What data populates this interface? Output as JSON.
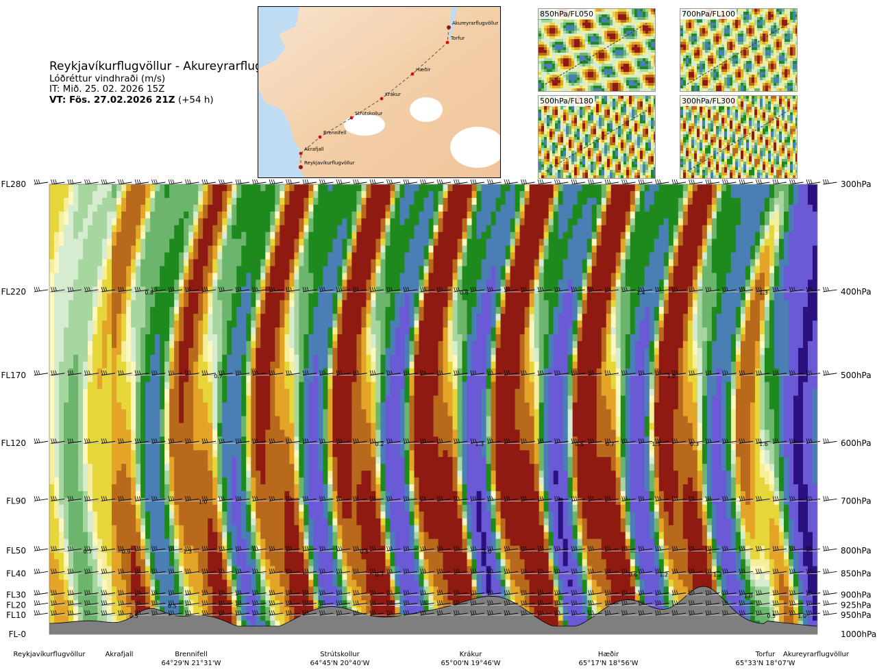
{
  "title": {
    "route": "Reykjavíkurflugvöllur - Akureyrarflugvöllur",
    "variable": "Lóðréttur vindhraði (m/s)",
    "issue_time": "IT: Mið. 25. 02. 2026 15Z",
    "valid_time_bold": "VT: Fös. 27.02.2026 21Z",
    "valid_time_lead": "(+54 h)"
  },
  "map": {
    "waypoints": [
      "Akureyrarflugvöllur",
      "Torfur",
      "Hæðir",
      "Krákur",
      "Strútskollur",
      "Brennifell",
      "Akrafjall",
      "Reykjavíkurflugvöllur"
    ]
  },
  "insets": [
    {
      "label": "850hPa/FL050"
    },
    {
      "label": "700hPa/FL100"
    },
    {
      "label": "500hPa/FL180"
    },
    {
      "label": "300hPa/FL300"
    }
  ],
  "chart_data": {
    "type": "heatmap",
    "title": "Lóðréttur vindhraði (m/s)",
    "left_axis": [
      "FL280",
      "FL220",
      "FL170",
      "FL120",
      "FL90",
      "FL50",
      "FL40",
      "FL30",
      "FL20",
      "FL10",
      "FL-0"
    ],
    "right_axis": [
      "300hPa",
      "400hPa",
      "500hPa",
      "600hPa",
      "700hPa",
      "800hPa",
      "850hPa",
      "900hPa",
      "925hPa",
      "950hPa",
      "1000hPa"
    ],
    "pressure_levels_hpa": [
      300,
      400,
      500,
      600,
      700,
      800,
      850,
      900,
      925,
      950,
      1000
    ],
    "colors": {
      "strong_down": "#2b1080",
      "down_3": "#6a5ad6",
      "down_2": "#4a7fb5",
      "down_1": "#1e8a1e",
      "down_05": "#6cb56c",
      "down_02": "#a8d6a0",
      "down_01": "#d6ecd0",
      "neutral": "#fff7c0",
      "up_01": "#f5ee9a",
      "up_02": "#e6d63a",
      "up_05": "#e3a427",
      "up_1": "#b8691b",
      "up_2": "#8e1a12",
      "terrain": "#7f7f7f"
    },
    "annotations": [
      {
        "x": 0.13,
        "p": 400,
        "label": "0.8"
      },
      {
        "x": 0.54,
        "p": 400,
        "label": "0.8"
      },
      {
        "x": 0.77,
        "p": 400,
        "label": "1.4"
      },
      {
        "x": 0.93,
        "p": 400,
        "label": "1.3"
      },
      {
        "x": 0.22,
        "p": 500,
        "label": "0.7"
      },
      {
        "x": 0.81,
        "p": 500,
        "label": "1.2"
      },
      {
        "x": 0.43,
        "p": 600,
        "label": "0.2"
      },
      {
        "x": 0.56,
        "p": 600,
        "label": "1.3"
      },
      {
        "x": 0.69,
        "p": 600,
        "label": "0.5"
      },
      {
        "x": 0.73,
        "p": 600,
        "label": "0.7"
      },
      {
        "x": 0.79,
        "p": 600,
        "label": "1.3"
      },
      {
        "x": 0.84,
        "p": 600,
        "label": "0.3"
      },
      {
        "x": 0.93,
        "p": 600,
        "label": "1.6"
      },
      {
        "x": 0.2,
        "p": 700,
        "label": "1.0"
      },
      {
        "x": 0.05,
        "p": 800,
        "label": "0.7"
      },
      {
        "x": 0.1,
        "p": 800,
        "label": "0.9"
      },
      {
        "x": 0.18,
        "p": 800,
        "label": "1.3"
      },
      {
        "x": 0.41,
        "p": 800,
        "label": "0.5"
      },
      {
        "x": 0.57,
        "p": 800,
        "label": "1.0"
      },
      {
        "x": 0.86,
        "p": 800,
        "label": "1"
      },
      {
        "x": 0.43,
        "p": 850,
        "label": "0.7"
      },
      {
        "x": 0.76,
        "p": 850,
        "label": "0.6"
      },
      {
        "x": 0.8,
        "p": 850,
        "label": "1.2"
      },
      {
        "x": 0.87,
        "p": 850,
        "label": "1.2"
      },
      {
        "x": 0.91,
        "p": 900,
        "label": "1.0"
      },
      {
        "x": 0.11,
        "p": 950,
        "label": "0.5"
      },
      {
        "x": 0.16,
        "p": 925,
        "label": "0.5"
      },
      {
        "x": 0.94,
        "p": 950,
        "label": "0.5"
      },
      {
        "x": 0.98,
        "p": 950,
        "label": "1.0"
      }
    ],
    "stations": [
      {
        "name": "Reykjavíkurflugvöllur",
        "coord": "",
        "x": 0.0
      },
      {
        "name": "Akrafjall",
        "coord": "",
        "x": 0.093
      },
      {
        "name": "Brennifell",
        "coord": "64°29'N 21°31'W",
        "x": 0.185
      },
      {
        "name": "Strútskollur",
        "coord": "64°45'N 20°40'W",
        "x": 0.38
      },
      {
        "name": "Krákur",
        "coord": "65°00'N 19°46'W",
        "x": 0.57
      },
      {
        "name": "Hæðir",
        "coord": "65°17'N 18°56'W",
        "x": 0.76
      },
      {
        "name": "Torfur",
        "coord": "65°33'N 18°07'W",
        "x": 0.93
      },
      {
        "name": "Akureyrarflugvöllur",
        "coord": "",
        "x": 1.0
      }
    ]
  }
}
